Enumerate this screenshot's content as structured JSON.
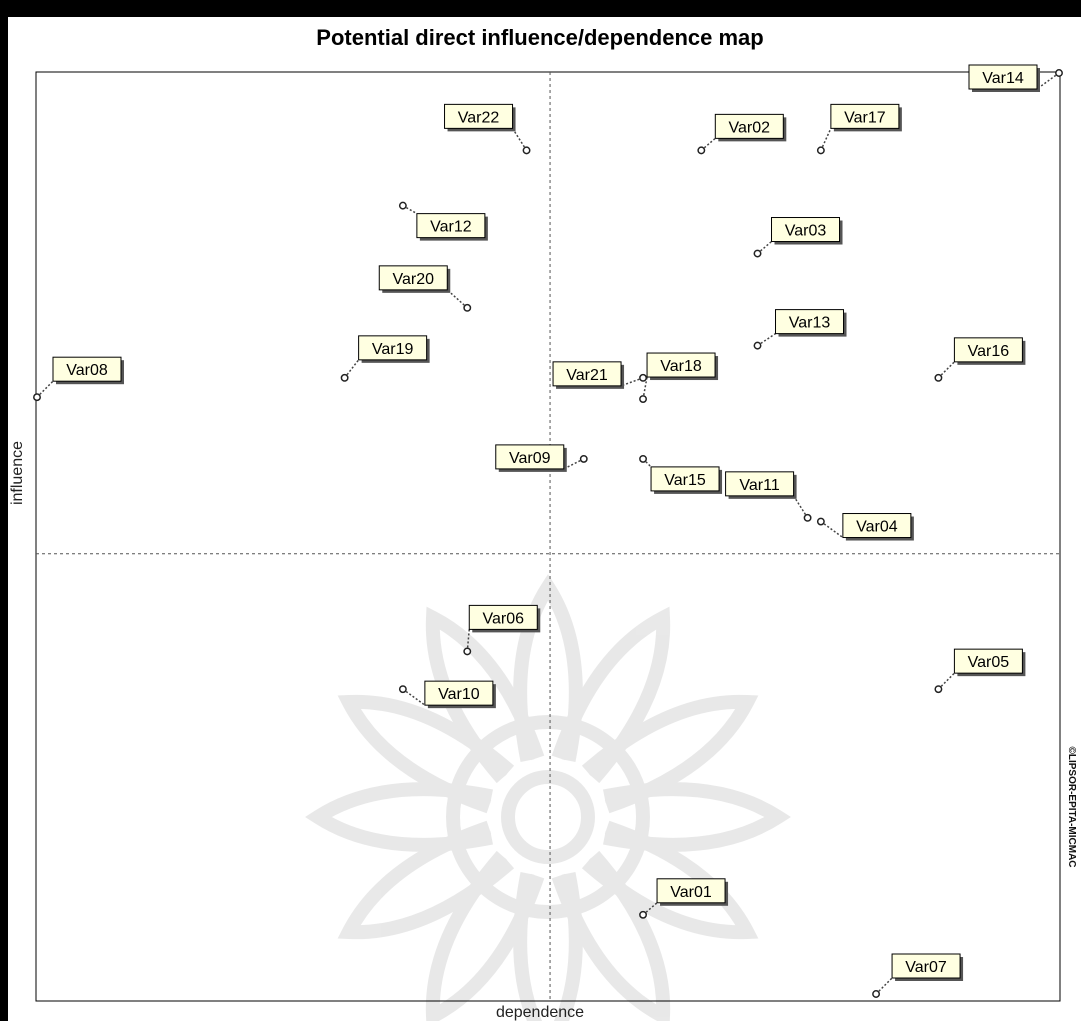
{
  "chart_data": {
    "type": "scatter",
    "title": "Potential direct influence/dependence map",
    "xlabel": "dependence",
    "ylabel": "influence",
    "watermark_note": "©LIPSOR-EPITA-MICMAC",
    "xlim": [
      0,
      100
    ],
    "ylim": [
      0,
      100
    ],
    "midpoint": {
      "x": 50.2,
      "y": 47.8
    },
    "grid": false,
    "points": [
      {
        "name": "Var01",
        "x": 59.3,
        "y": 8.6
      },
      {
        "name": "Var02",
        "x": 65.0,
        "y": 91.6
      },
      {
        "name": "Var03",
        "x": 70.5,
        "y": 80.4
      },
      {
        "name": "Var04",
        "x": 76.7,
        "y": 51.3
      },
      {
        "name": "Var05",
        "x": 88.2,
        "y": 33.1
      },
      {
        "name": "Var06",
        "x": 42.1,
        "y": 37.2
      },
      {
        "name": "Var07",
        "x": 82.1,
        "y": 0.0
      },
      {
        "name": "Var08",
        "x": 0.0,
        "y": 64.8
      },
      {
        "name": "Var09",
        "x": 53.5,
        "y": 58.1
      },
      {
        "name": "Var10",
        "x": 35.8,
        "y": 33.1
      },
      {
        "name": "Var11",
        "x": 75.4,
        "y": 51.7
      },
      {
        "name": "Var12",
        "x": 35.8,
        "y": 85.6
      },
      {
        "name": "Var13",
        "x": 70.5,
        "y": 70.4
      },
      {
        "name": "Var14",
        "x": 100.0,
        "y": 100.0
      },
      {
        "name": "Var15",
        "x": 59.3,
        "y": 58.1
      },
      {
        "name": "Var16",
        "x": 88.2,
        "y": 66.9
      },
      {
        "name": "Var17",
        "x": 76.7,
        "y": 91.6
      },
      {
        "name": "Var18",
        "x": 59.3,
        "y": 64.6
      },
      {
        "name": "Var19",
        "x": 30.1,
        "y": 66.9
      },
      {
        "name": "Var20",
        "x": 42.1,
        "y": 74.5
      },
      {
        "name": "Var21",
        "x": 59.3,
        "y": 66.9
      },
      {
        "name": "Var22",
        "x": 47.9,
        "y": 91.6
      }
    ]
  }
}
